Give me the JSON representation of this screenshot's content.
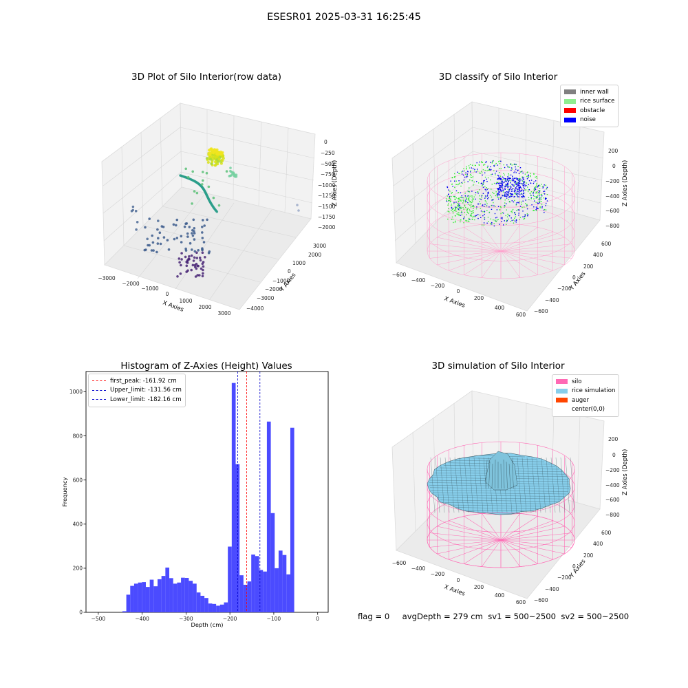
{
  "figure": {
    "suptitle": "ESESR01 2025-03-31 16:25:45",
    "footer": {
      "flag": "flag = 0",
      "avg_depth": "avgDepth = 279 cm",
      "sv1": "sv1 = 500~2500",
      "sv2": "sv2 = 500~2500"
    }
  },
  "chart_data": [
    {
      "type": "scatter",
      "title": "3D Plot of Silo Interior(row data)",
      "xlabel": "X Axies",
      "ylabel": "Y Axies",
      "zlabel": "Z Axies (Depth)",
      "x_ticks": [
        "−3000",
        "−2000",
        "−1000",
        "0",
        "1000",
        "2000",
        "3000"
      ],
      "y_ticks": [
        "3000",
        "2000",
        "1000",
        "0",
        "−1000",
        "−2000",
        "−3000",
        "−4000"
      ],
      "z_ticks": [
        "0",
        "−250",
        "−500",
        "−750",
        "−1000",
        "−1250",
        "−1500",
        "−1750",
        "−2000"
      ],
      "colormap": "viridis",
      "clusters": [
        {
          "name": "top blob",
          "color": "#d8e219"
        },
        {
          "name": "spiral",
          "color": "#2a9d8a"
        },
        {
          "name": "middle",
          "color": "#3b5b8c"
        },
        {
          "name": "bottom",
          "color": "#482575"
        }
      ]
    },
    {
      "type": "scatter",
      "title": "3D classify of Silo Interior",
      "xlabel": "X Axies",
      "ylabel": "Y Axies",
      "zlabel": "Z Axies (Depth)",
      "x_ticks": [
        "−600",
        "−400",
        "−200",
        "0",
        "200",
        "400",
        "600"
      ],
      "y_ticks": [
        "600",
        "400",
        "200",
        "0",
        "−200",
        "−400",
        "−600"
      ],
      "z_ticks": [
        "200",
        "0",
        "−200",
        "−400",
        "−600",
        "−800"
      ],
      "legend": [
        {
          "label": "inner wall",
          "color": "#808080"
        },
        {
          "label": "rice surface",
          "color": "#90ee90"
        },
        {
          "label": "obstacle",
          "color": "#ff0000"
        },
        {
          "label": "noise",
          "color": "#0000ff"
        }
      ],
      "colors": {
        "wall": "#ff9ecb",
        "surface": "#33ee33",
        "noise": "#0000ee"
      }
    },
    {
      "type": "bar",
      "title": "Histogram of Z-Axies (Height) Values",
      "xlabel": "Depth (cm)",
      "ylabel": "Frequency",
      "xlim": [
        -528,
        24
      ],
      "ylim": [
        0,
        1092
      ],
      "x_ticks": [
        -500,
        -400,
        -300,
        -200,
        -100,
        0
      ],
      "x_tick_labels": [
        "−500",
        "−400",
        "−300",
        "−200",
        "−100",
        "0"
      ],
      "y_ticks": [
        0,
        200,
        400,
        600,
        800,
        1000
      ],
      "bin_start": -445,
      "bin_width": 8.9,
      "values": [
        5,
        80,
        120,
        130,
        135,
        137,
        115,
        148,
        118,
        150,
        165,
        203,
        155,
        130,
        135,
        157,
        156,
        143,
        130,
        90,
        75,
        65,
        40,
        38,
        30,
        35,
        45,
        298,
        1040,
        672,
        168,
        125,
        140,
        262,
        255,
        192,
        185,
        865,
        450,
        200,
        280,
        260,
        172,
        837
      ],
      "bar_color": "#4b4bff",
      "vlines": [
        {
          "label": "first_peak: -161.92 cm",
          "x": -161.92,
          "color": "#ff0000"
        },
        {
          "label": "Upper_limit: -131.56 cm",
          "x": -131.56,
          "color": "#0000cc"
        },
        {
          "label": "Lower_limit: -182.16 cm",
          "x": -182.16,
          "color": "#0000cc"
        }
      ]
    },
    {
      "type": "surface",
      "title": "3D simulation of Silo Interior",
      "xlabel": "X Axies",
      "ylabel": "Y Axies",
      "zlabel": "Z Axies (Depth)",
      "x_ticks": [
        "−600",
        "−400",
        "−200",
        "0",
        "200",
        "400",
        "600"
      ],
      "y_ticks": [
        "600",
        "400",
        "200",
        "0",
        "−200",
        "−400",
        "−600"
      ],
      "z_ticks": [
        "200",
        "0",
        "−200",
        "−400",
        "−600",
        "−800"
      ],
      "legend": [
        {
          "label": "silo",
          "color": "#ff69b4"
        },
        {
          "label": "rice simulation",
          "color": "#87ceeb"
        },
        {
          "label": "auger",
          "color": "#ff4500"
        },
        {
          "label": "center(0,0)",
          "color": ""
        }
      ],
      "colors": {
        "wall": "#ff69b4",
        "surface": "#87ceeb"
      }
    }
  ]
}
